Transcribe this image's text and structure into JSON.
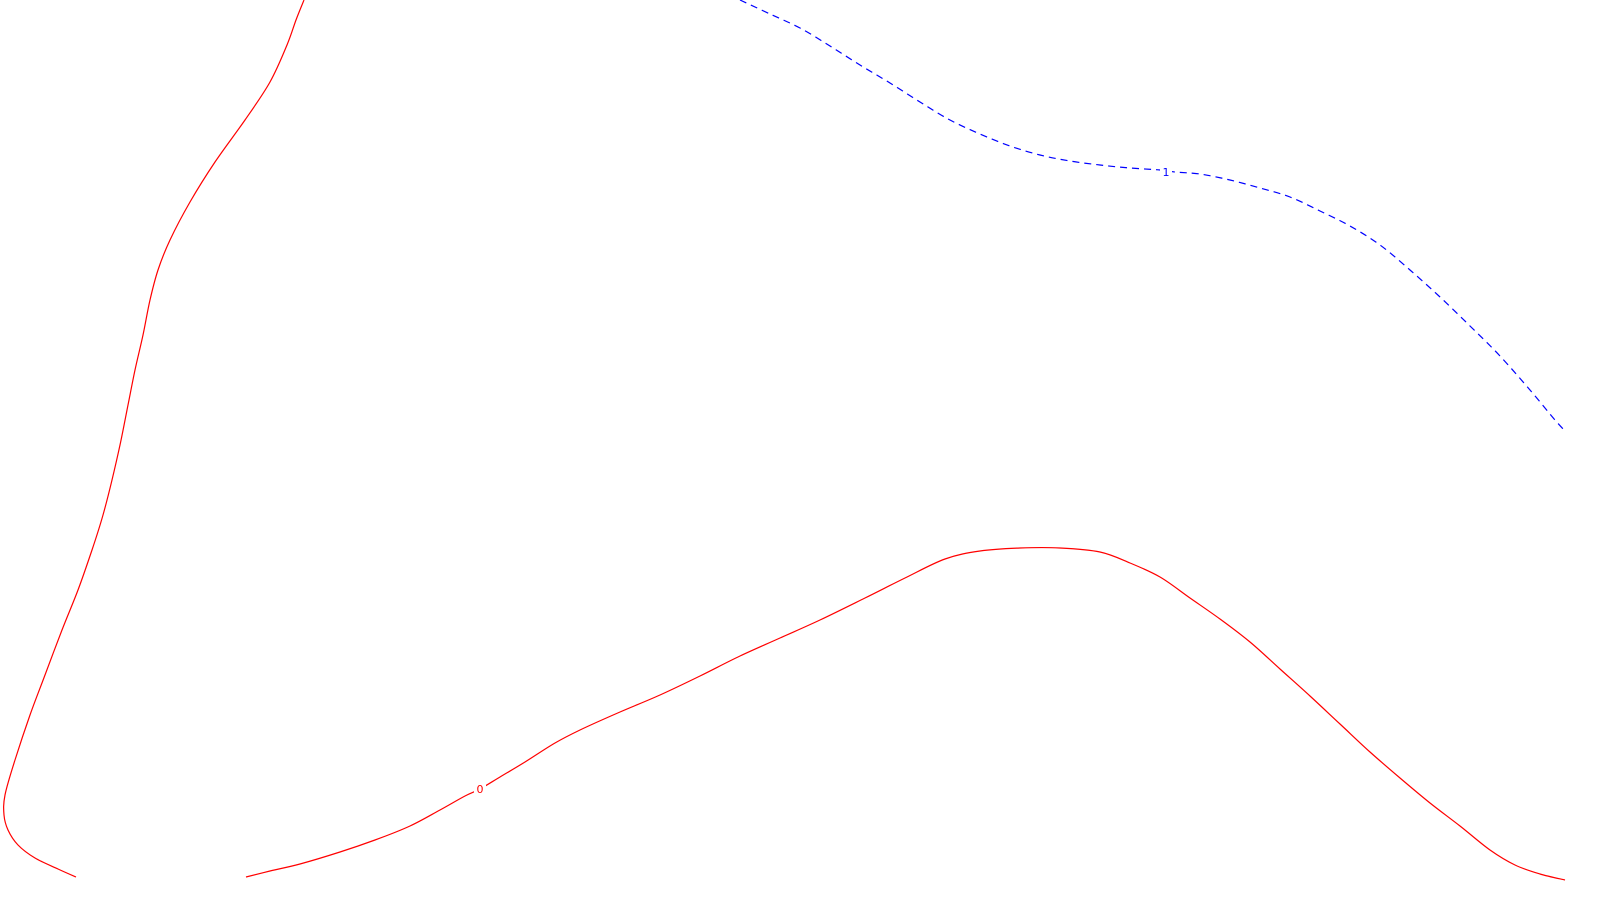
{
  "chart_data": {
    "type": "line",
    "title": "",
    "xlabel": "",
    "ylabel": "",
    "grid": false,
    "legend": "none",
    "contours": [
      {
        "level_label": "0",
        "color": "#ff0000",
        "style": "solid",
        "segments": [
          {
            "id": "left-branch",
            "points": [
              [
                304,
                0
              ],
              [
                296,
                20
              ],
              [
                287,
                45
              ],
              [
                270,
                82
              ],
              [
                245,
                120
              ],
              [
                215,
                162
              ],
              [
                190,
                202
              ],
              [
                170,
                240
              ],
              [
                158,
                270
              ],
              [
                150,
                300
              ],
              [
                143,
                335
              ],
              [
                135,
                370
              ],
              [
                128,
                405
              ],
              [
                120,
                445
              ],
              [
                112,
                480
              ],
              [
                103,
                515
              ],
              [
                92,
                550
              ],
              [
                78,
                590
              ],
              [
                62,
                630
              ],
              [
                45,
                675
              ],
              [
                30,
                715
              ],
              [
                15,
                760
              ],
              [
                5,
                795
              ],
              [
                4,
                815
              ],
              [
                8,
                830
              ],
              [
                18,
                845
              ],
              [
                35,
                858
              ],
              [
                58,
                869
              ],
              [
                76,
                877
              ]
            ]
          },
          {
            "id": "lower-branch",
            "points": [
              [
                246,
                877
              ],
              [
                270,
                871
              ],
              [
                300,
                864
              ],
              [
                340,
                852
              ],
              [
                375,
                840
              ],
              [
                410,
                826
              ],
              [
                440,
                810
              ],
              [
                465,
                796
              ],
              [
                480,
                789
              ],
              [
                500,
                777
              ],
              [
                525,
                762
              ],
              [
                555,
                743
              ],
              [
                580,
                730
              ],
              [
                620,
                712
              ],
              [
                660,
                695
              ],
              [
                700,
                676
              ],
              [
                740,
                656
              ],
              [
                780,
                638
              ],
              [
                820,
                620
              ],
              [
                865,
                598
              ],
              [
                905,
                578
              ],
              [
                945,
                559
              ],
              [
                980,
                551
              ],
              [
                1020,
                548
              ],
              [
                1060,
                548
              ],
              [
                1100,
                552
              ],
              [
                1130,
                563
              ],
              [
                1160,
                577
              ],
              [
                1190,
                598
              ],
              [
                1220,
                619
              ],
              [
                1250,
                642
              ],
              [
                1280,
                669
              ],
              [
                1310,
                696
              ],
              [
                1340,
                724
              ],
              [
                1370,
                752
              ],
              [
                1400,
                778
              ],
              [
                1430,
                803
              ],
              [
                1460,
                826
              ],
              [
                1490,
                850
              ],
              [
                1515,
                865
              ],
              [
                1540,
                874
              ],
              [
                1565,
                880
              ]
            ]
          }
        ],
        "label_at": [
          480,
          789
        ]
      },
      {
        "level_label": "1",
        "color": "#0000ff",
        "style": "dashed",
        "segments": [
          {
            "id": "upper-branch",
            "points": [
              [
                740,
                0
              ],
              [
                770,
                14
              ],
              [
                800,
                28
              ],
              [
                830,
                46
              ],
              [
                860,
                65
              ],
              [
                890,
                83
              ],
              [
                920,
                102
              ],
              [
                950,
                120
              ],
              [
                980,
                134
              ],
              [
                1010,
                146
              ],
              [
                1040,
                155
              ],
              [
                1070,
                161
              ],
              [
                1100,
                165
              ],
              [
                1130,
                168
              ],
              [
                1160,
                170
              ],
              [
                1175,
                172
              ],
              [
                1200,
                174
              ],
              [
                1230,
                180
              ],
              [
                1260,
                188
              ],
              [
                1290,
                197
              ],
              [
                1320,
                211
              ],
              [
                1350,
                226
              ],
              [
                1380,
                245
              ],
              [
                1410,
                270
              ],
              [
                1440,
                297
              ],
              [
                1470,
                326
              ],
              [
                1500,
                356
              ],
              [
                1530,
                390
              ],
              [
                1555,
                420
              ],
              [
                1566,
                432
              ]
            ]
          }
        ],
        "label_at": [
          1166,
          172
        ]
      }
    ]
  }
}
